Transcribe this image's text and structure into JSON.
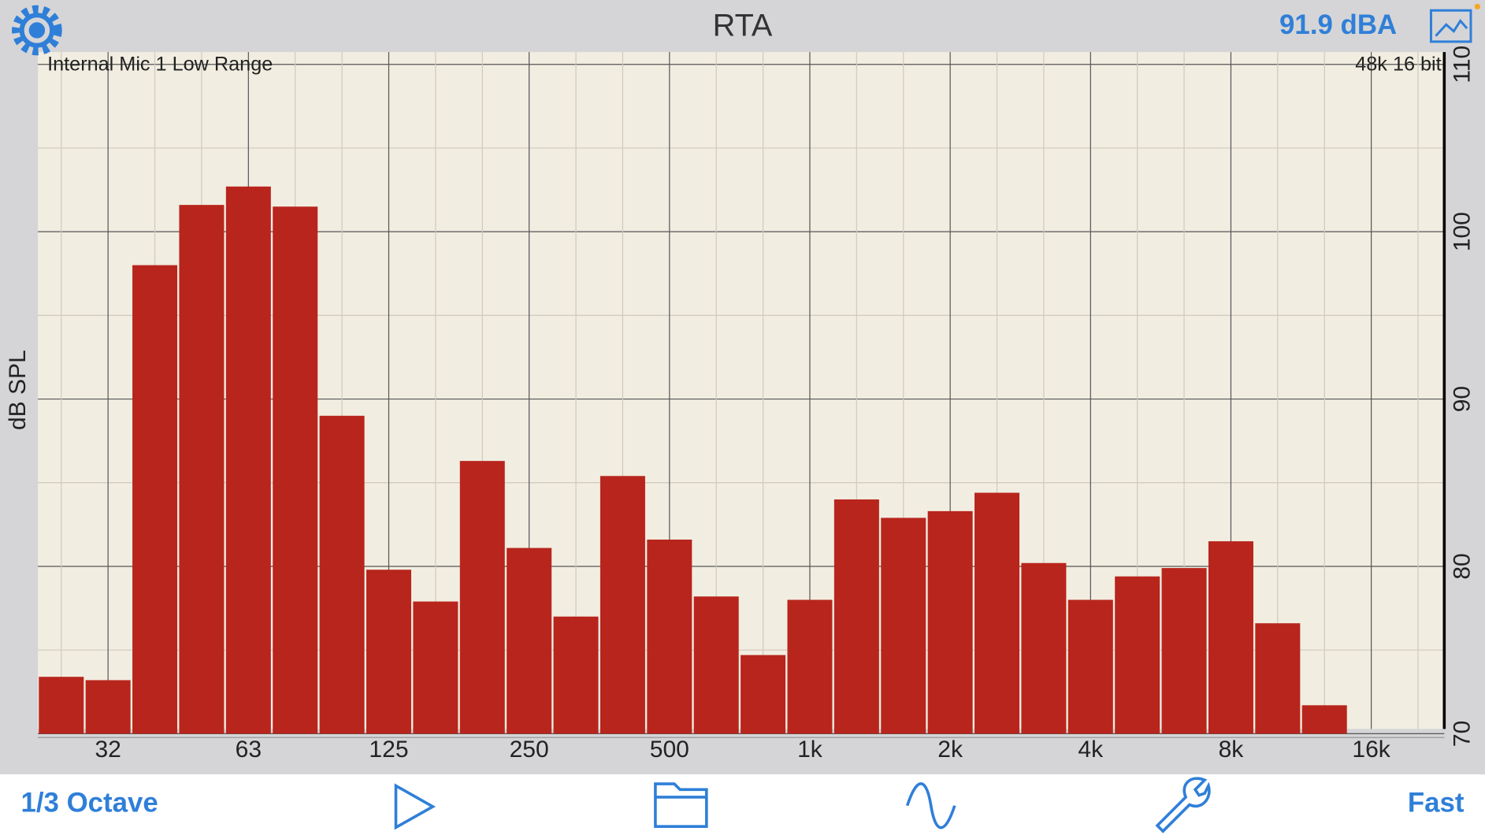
{
  "chart_data": {
    "type": "bar",
    "title": "RTA",
    "y_label": "dB SPL",
    "annotations": [
      "Internal Mic 1 Low Range",
      "48k 16 bit"
    ],
    "categories": [
      null,
      "32",
      null,
      null,
      "63",
      null,
      null,
      "125",
      null,
      null,
      "250",
      null,
      null,
      "500",
      null,
      null,
      "1k",
      null,
      null,
      "2k",
      null,
      null,
      "4k",
      null,
      null,
      "8k",
      null,
      null,
      "16k",
      null
    ],
    "values": [
      73.4,
      73.2,
      98.0,
      101.6,
      102.7,
      101.5,
      89.0,
      79.8,
      77.9,
      86.3,
      81.1,
      77.0,
      85.4,
      81.6,
      78.2,
      74.7,
      78.0,
      84.0,
      82.9,
      83.3,
      84.4,
      80.2,
      78.0,
      79.4,
      79.9,
      81.5,
      76.6,
      71.7,
      null,
      null
    ],
    "color": "#b8251c",
    "ylim": [
      70,
      110
    ],
    "yticks": [
      70,
      80,
      90,
      100,
      110
    ],
    "yminor": [
      75,
      85,
      95,
      105
    ],
    "grid": true
  },
  "header": {
    "level": "91.9 dBA"
  },
  "toolbar": {
    "resolution": "1/3 Octave",
    "speed": "Fast"
  }
}
